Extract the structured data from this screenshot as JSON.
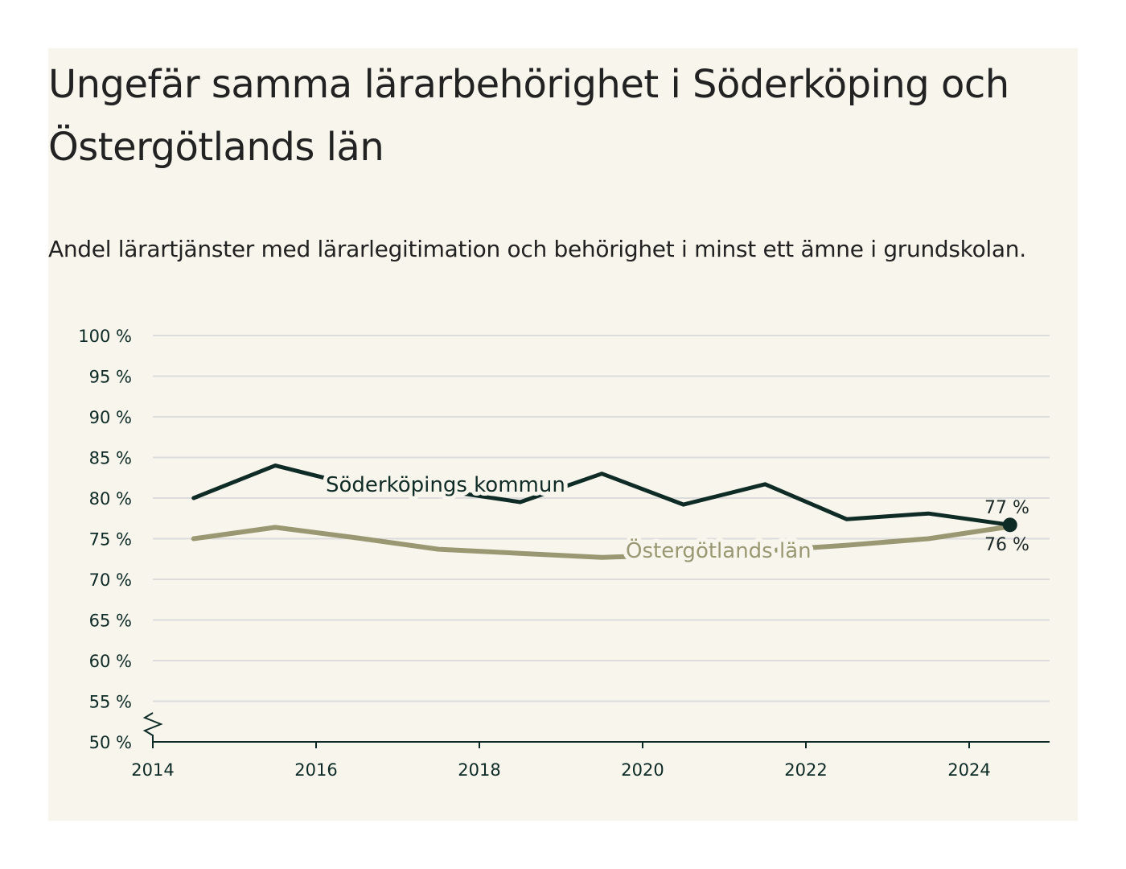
{
  "title": "Ungefär samma lärarbehörighet i Söderköping och Östergötlands län",
  "subtitle": "Andel lärartjänster med lärarlegitimation och behörighet i minst ett ämne i grundskolan.",
  "colors": {
    "background": "#f7f5ec",
    "soderkoping": "#0f2b26",
    "ostergotland": "#9a9872",
    "grid": "#dcdcdc",
    "axis": "#0d2a26"
  },
  "chart_data": {
    "type": "line",
    "title": "Ungefär samma lärarbehörighet i Söderköping och Östergötlands län",
    "subtitle": "Andel lärartjänster med lärarlegitimation och behörighet i minst ett ämne i grundskolan.",
    "xlim": [
      2014,
      2025
    ],
    "ylim": [
      50,
      100
    ],
    "y_ticks": [
      50,
      55,
      60,
      65,
      70,
      75,
      80,
      85,
      90,
      95,
      100
    ],
    "y_tick_labels": [
      "50 %",
      "55 %",
      "60 %",
      "65 %",
      "70 %",
      "75 %",
      "80 %",
      "85 %",
      "90 %",
      "95 %",
      "100 %"
    ],
    "x_ticks": [
      2014,
      2016,
      2018,
      2020,
      2022,
      2024
    ],
    "x_tick_labels": [
      "2014",
      "2016",
      "2018",
      "2020",
      "2022",
      "2024"
    ],
    "axis_break": true,
    "grid": true,
    "series": [
      {
        "name": "Söderköpings kommun",
        "color": "#0f2b26",
        "x": [
          2014.5,
          2015.5,
          2016.5,
          2017.5,
          2018.5,
          2019.5,
          2020.5,
          2021.5,
          2022.5,
          2023.5,
          2024.5
        ],
        "values": [
          80.0,
          84.0,
          81.5,
          81.0,
          79.5,
          83.0,
          79.2,
          81.7,
          77.4,
          78.1,
          76.7
        ],
        "end_label": "77 %"
      },
      {
        "name": "Östergötlands län",
        "color": "#9a9872",
        "x": [
          2014.5,
          2015.5,
          2016.5,
          2017.5,
          2018.5,
          2019.5,
          2020.5,
          2021.5,
          2022.5,
          2023.5,
          2024.5
        ],
        "values": [
          75.0,
          76.4,
          75.1,
          73.7,
          73.2,
          72.7,
          73.0,
          73.5,
          74.2,
          75.0,
          76.5
        ],
        "end_label": "76 %"
      }
    ]
  }
}
